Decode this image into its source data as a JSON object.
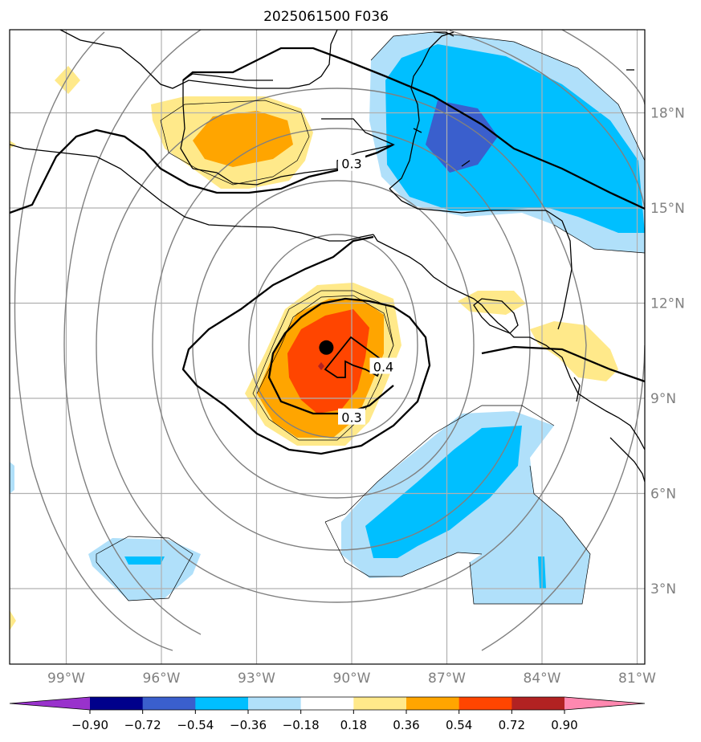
{
  "title": "2025061500 F036",
  "lat_labels": [
    {
      "lat": 18,
      "text": "18°N"
    },
    {
      "lat": 15,
      "text": "15°N"
    },
    {
      "lat": 12,
      "text": "12°N"
    },
    {
      "lat": 9,
      "text": "9°N"
    },
    {
      "lat": 6,
      "text": "6°N"
    },
    {
      "lat": 3,
      "text": "3°N"
    }
  ],
  "lon_labels": [
    {
      "lon": -99,
      "text": "99°W"
    },
    {
      "lon": -96,
      "text": "96°W"
    },
    {
      "lon": -93,
      "text": "93°W"
    },
    {
      "lon": -90,
      "text": "90°W"
    },
    {
      "lon": -87,
      "text": "87°W"
    },
    {
      "lon": -84,
      "text": "84°W"
    },
    {
      "lon": -81,
      "text": "81°W"
    }
  ],
  "contour_labels": [
    {
      "text": "0.3",
      "lon": -90.0,
      "lat": 16.4
    },
    {
      "text": "0.4",
      "lon": -89.0,
      "lat": 10.0
    },
    {
      "text": "0.3",
      "lon": -90.0,
      "lat": 8.4
    }
  ],
  "colorbar": {
    "colors": [
      "#9932cc",
      "#00008b",
      "#3a5fcd",
      "#00bfff",
      "#b0e0fa",
      "#ffffff",
      "#ffe98a",
      "#ffa500",
      "#ff4500",
      "#b22222",
      "#ff88b0"
    ],
    "ticks": [
      "−0.90",
      "−0.72",
      "−0.54",
      "−0.36",
      "−0.18",
      "0.18",
      "0.36",
      "0.54",
      "0.72",
      "0.90"
    ]
  },
  "legend_colors": {
    "light_blue": "#b0e0fa",
    "deep_sky_blue": "#00bfff",
    "royal_blue": "#3a5fcd",
    "light_yellow": "#ffe98a",
    "orange": "#ffa500",
    "orange_red": "#ff4500",
    "gridline": "#b0b0b0",
    "range_ring": "#808080",
    "tick_label": "#808080"
  },
  "center_marker": {
    "lon": -90.8,
    "lat": 10.6
  }
}
